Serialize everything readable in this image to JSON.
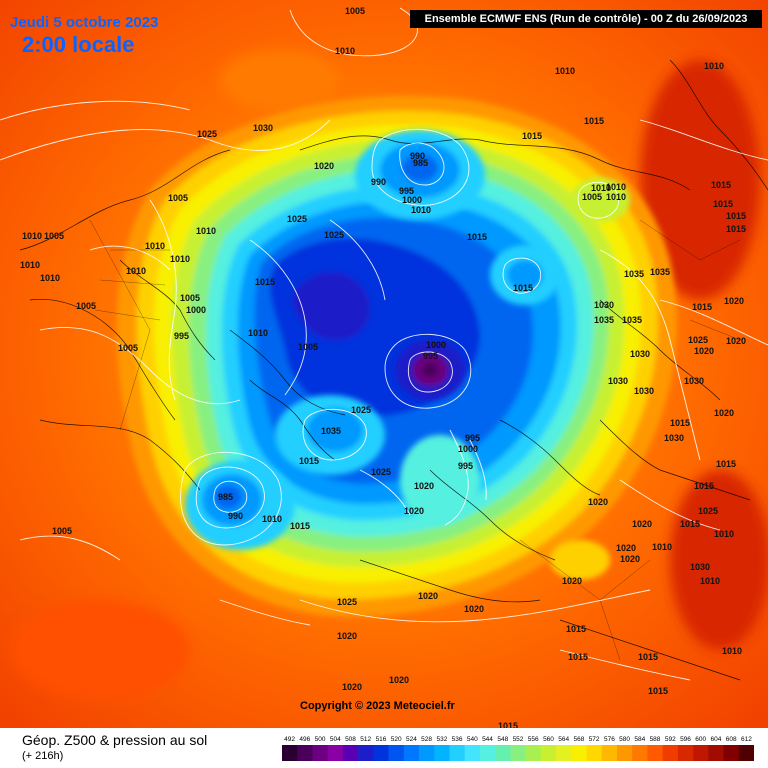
{
  "header": {
    "date": "Jeudi 5 octobre 2023",
    "local_time": "2:00 locale",
    "model_run": "Ensemble ECMWF ENS  (Run de contrôle)  -  00 Z du 26/09/2023"
  },
  "copyright": "Copyright © 2023 Meteociel.fr",
  "footer": {
    "title": "Géop. Z500 & pression au sol",
    "lead": "(+ 216h)"
  },
  "legend": {
    "labels": [
      "492",
      "496",
      "500",
      "504",
      "508",
      "512",
      "516",
      "520",
      "524",
      "528",
      "532",
      "536",
      "540",
      "544",
      "548",
      "552",
      "556",
      "560",
      "564",
      "568",
      "572",
      "576",
      "580",
      "584",
      "588",
      "592",
      "596",
      "600",
      "604",
      "608",
      "612"
    ],
    "colors": [
      "#2a0030",
      "#4a005a",
      "#6c0080",
      "#8a00a6",
      "#5a00b4",
      "#1e1ec8",
      "#0033dd",
      "#0055f0",
      "#0077ff",
      "#0099ff",
      "#00b4ff",
      "#22cfff",
      "#44e4ff",
      "#55f0e0",
      "#66f0b0",
      "#88f080",
      "#a8f050",
      "#c8f030",
      "#e4f020",
      "#f8f000",
      "#ffd800",
      "#ffb800",
      "#ff9800",
      "#ff7800",
      "#ff5a00",
      "#f03c00",
      "#d82800",
      "#c01800",
      "#a00c00",
      "#800000",
      "#500000"
    ]
  },
  "isobar_labels": [
    {
      "t": "1005"
    },
    {
      "t": "1010"
    },
    {
      "t": "1010"
    },
    {
      "t": "1025"
    },
    {
      "t": "1030"
    },
    {
      "t": "1005"
    },
    {
      "t": "1010"
    },
    {
      "t": "1010"
    },
    {
      "t": "1005"
    },
    {
      "t": "1010"
    },
    {
      "t": "1010"
    },
    {
      "t": "1010"
    },
    {
      "t": "1010"
    },
    {
      "t": "1010"
    },
    {
      "t": "1005"
    },
    {
      "t": "1000"
    },
    {
      "t": "1005"
    },
    {
      "t": "995"
    },
    {
      "t": "1005"
    },
    {
      "t": "1020"
    },
    {
      "t": "1025"
    },
    {
      "t": "1010"
    },
    {
      "t": "1010"
    },
    {
      "t": "990"
    },
    {
      "t": "985"
    },
    {
      "t": "990"
    },
    {
      "t": "995"
    },
    {
      "t": "1000"
    },
    {
      "t": "1010"
    },
    {
      "t": "1015"
    },
    {
      "t": "1025"
    },
    {
      "t": "1015"
    },
    {
      "t": "1015"
    },
    {
      "t": "1010"
    },
    {
      "t": "1010"
    },
    {
      "t": "1005"
    },
    {
      "t": "1010"
    },
    {
      "t": "995"
    },
    {
      "t": "1000"
    },
    {
      "t": "1005"
    },
    {
      "t": "1025"
    },
    {
      "t": "1035"
    },
    {
      "t": "1015"
    },
    {
      "t": "1025"
    },
    {
      "t": "995"
    },
    {
      "t": "1000"
    },
    {
      "t": "995"
    },
    {
      "t": "1020"
    },
    {
      "t": "1020"
    },
    {
      "t": "1015"
    },
    {
      "t": "1035"
    },
    {
      "t": "1035"
    },
    {
      "t": "1030"
    },
    {
      "t": "1035"
    },
    {
      "t": "1035"
    },
    {
      "t": "1030"
    },
    {
      "t": "1030"
    },
    {
      "t": "1030"
    },
    {
      "t": "1030"
    },
    {
      "t": "1020"
    },
    {
      "t": "1015"
    },
    {
      "t": "1015"
    },
    {
      "t": "1015"
    },
    {
      "t": "1015"
    },
    {
      "t": "1015"
    },
    {
      "t": "1020"
    },
    {
      "t": "1025"
    },
    {
      "t": "1020"
    },
    {
      "t": "1020"
    },
    {
      "t": "1015"
    },
    {
      "t": "1020"
    },
    {
      "t": "1020"
    },
    {
      "t": "1020"
    },
    {
      "t": "1010"
    },
    {
      "t": "1010"
    },
    {
      "t": "1015"
    },
    {
      "t": "1025"
    },
    {
      "t": "1020"
    },
    {
      "t": "1020"
    },
    {
      "t": "1020"
    },
    {
      "t": "1020"
    },
    {
      "t": "1015"
    },
    {
      "t": "1015"
    },
    {
      "t": "1015"
    },
    {
      "t": "1015"
    },
    {
      "t": "1015"
    },
    {
      "t": "1010"
    },
    {
      "t": "1015"
    },
    {
      "t": "1005"
    },
    {
      "t": "985"
    },
    {
      "t": "990"
    },
    {
      "t": "1010"
    },
    {
      "t": "1015"
    },
    {
      "t": "1020"
    },
    {
      "t": "1025"
    },
    {
      "t": "1020"
    },
    {
      "t": "1020"
    },
    {
      "t": "1015"
    },
    {
      "t": "1015"
    },
    {
      "t": "1030"
    },
    {
      "t": "1030"
    },
    {
      "t": "1010"
    },
    {
      "t": "1015"
    }
  ]
}
